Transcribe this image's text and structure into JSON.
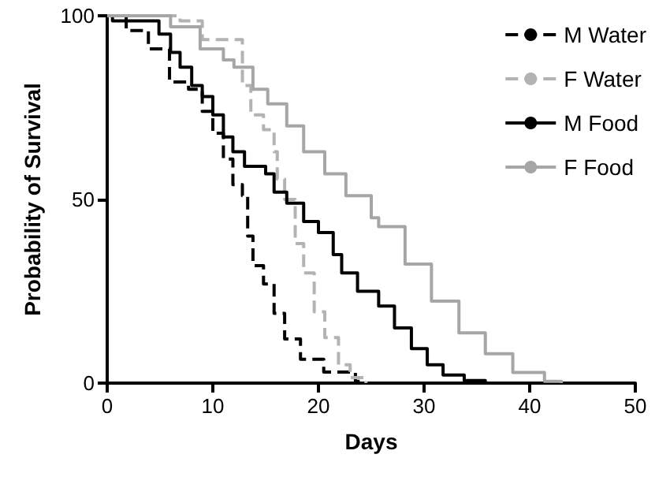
{
  "chart_data": {
    "type": "step",
    "xlabel": "Days",
    "ylabel": "Probability of Survival",
    "xlim": [
      0,
      50
    ],
    "xticks": [
      0,
      10,
      20,
      30,
      40,
      50
    ],
    "ylim": [
      0,
      100
    ],
    "yticks": [
      0,
      50,
      100
    ],
    "grid": false,
    "legend": "top right",
    "marker": "none",
    "series": [
      {
        "name": "M Water",
        "color": "#000000",
        "line_style": "dashed",
        "x": [
          0,
          1.8,
          3.9,
          5.9,
          7.7,
          9,
          10,
          11,
          11.9,
          12.8,
          13.3,
          13.8,
          14.8,
          15.8,
          16.8,
          18.3,
          20.5,
          23.5,
          24
        ],
        "values": [
          100,
          96,
          91,
          82,
          80,
          74,
          68,
          61,
          54,
          51,
          40,
          32,
          27,
          19,
          12,
          6.5,
          3,
          0.5,
          0
        ]
      },
      {
        "name": "F Water",
        "color": "#b3b3b3",
        "line_style": "dashed",
        "x": [
          0,
          5,
          6.9,
          9,
          12.8,
          13.6,
          14.8,
          15.8,
          16.1,
          16.8,
          17.8,
          18.6,
          19.6,
          20.6,
          21.9,
          23,
          24.5
        ],
        "values": [
          100,
          100,
          98.6,
          93.5,
          81,
          73,
          69,
          63,
          55.5,
          50,
          38,
          30,
          19.4,
          12.4,
          5,
          1.5,
          0
        ]
      },
      {
        "name": "M Food",
        "color": "#000000",
        "line_style": "solid",
        "x": [
          0,
          0.5,
          4.9,
          6,
          6.9,
          8,
          9,
          10,
          11,
          11.9,
          13,
          15,
          15.8,
          17,
          18.6,
          20,
          21.4,
          22.2,
          23.7,
          25.7,
          27.2,
          28.8,
          30.3,
          31.8,
          33.8,
          35.8
        ],
        "values": [
          100,
          98.6,
          95,
          90,
          86,
          81,
          78,
          73,
          67,
          63,
          59,
          57,
          52,
          49,
          44,
          41,
          35,
          30,
          25,
          21,
          15,
          9.4,
          5,
          2.2,
          0.7,
          0
        ]
      },
      {
        "name": "F Food",
        "color": "#a6a6a6",
        "line_style": "solid",
        "x": [
          0,
          2,
          6,
          8.8,
          11,
          12,
          13.8,
          15.2,
          17,
          18.6,
          20.6,
          22.6,
          25,
          25.7,
          28.2,
          30.7,
          33.3,
          35.8,
          38.4,
          41.4,
          43
        ],
        "values": [
          100,
          100,
          97,
          91,
          88,
          86,
          80,
          76,
          70,
          63,
          57,
          51,
          45,
          42.6,
          32.4,
          22.3,
          13.7,
          8,
          2.9,
          0.5,
          0
        ]
      }
    ]
  }
}
